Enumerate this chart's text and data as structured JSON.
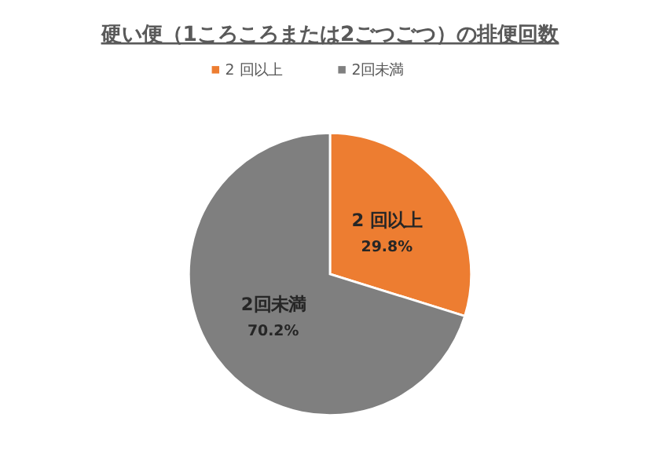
{
  "chart_data": {
    "type": "pie",
    "title": "硬い便（1ころころまたは2ごつごつ）の排便回数",
    "categories": [
      "2 回以上",
      "2回未満"
    ],
    "values": [
      29.8,
      70.2
    ],
    "colors": [
      "#ed7d31",
      "#7f7f7f"
    ],
    "value_labels": [
      "29.8%",
      "70.2%"
    ],
    "legend": "top"
  }
}
